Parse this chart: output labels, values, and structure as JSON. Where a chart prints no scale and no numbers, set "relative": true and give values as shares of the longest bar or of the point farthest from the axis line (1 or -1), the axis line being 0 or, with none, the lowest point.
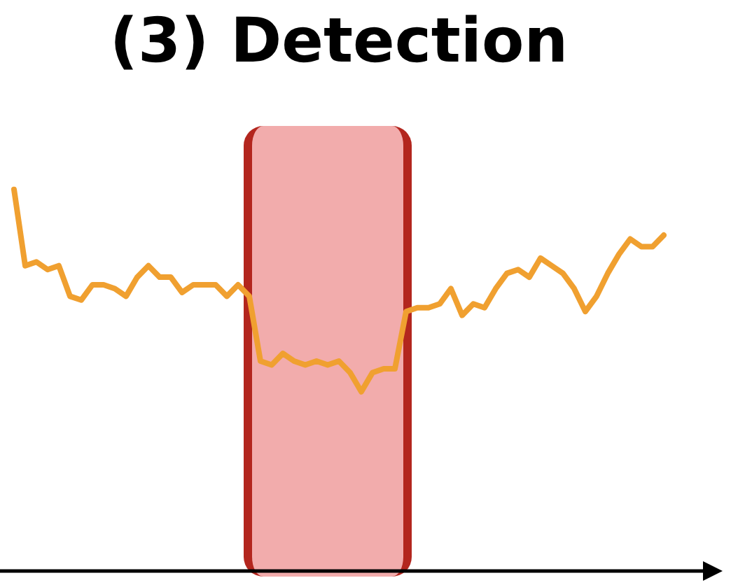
{
  "chart_data": {
    "type": "line",
    "title": "(3) Detection",
    "relative": true,
    "grid": false,
    "legend": false,
    "marker": "none",
    "categories": [
      null,
      null,
      null,
      null,
      null,
      null,
      null,
      null,
      null,
      null,
      null,
      null,
      null,
      null,
      null,
      null,
      null,
      null,
      null,
      null,
      null,
      null,
      null,
      null,
      null,
      null,
      null,
      null,
      null,
      null,
      null,
      null,
      null,
      null,
      null,
      null,
      null,
      null,
      null,
      null,
      null,
      null,
      null,
      null,
      null,
      null,
      null,
      null,
      null,
      null,
      null,
      null,
      null,
      null,
      null,
      null,
      null,
      null,
      null
    ],
    "series": [
      {
        "color": "#f0a030",
        "values": [
          1.0,
          0.8,
          0.81,
          0.79,
          0.8,
          0.72,
          0.71,
          0.75,
          0.75,
          0.74,
          0.72,
          0.77,
          0.8,
          0.77,
          0.77,
          0.73,
          0.75,
          0.75,
          0.75,
          0.72,
          0.75,
          0.72,
          0.55,
          0.54,
          0.57,
          0.55,
          0.54,
          0.55,
          0.54,
          0.55,
          0.52,
          0.47,
          0.52,
          0.53,
          0.53,
          0.68,
          0.69,
          0.69,
          0.7,
          0.74,
          0.67,
          0.7,
          0.69,
          0.74,
          0.78,
          0.79,
          0.77,
          0.82,
          0.8,
          0.78,
          0.74,
          0.68,
          0.72,
          0.78,
          0.83,
          0.87,
          0.85,
          0.85,
          0.88
        ]
      }
    ]
  }
}
